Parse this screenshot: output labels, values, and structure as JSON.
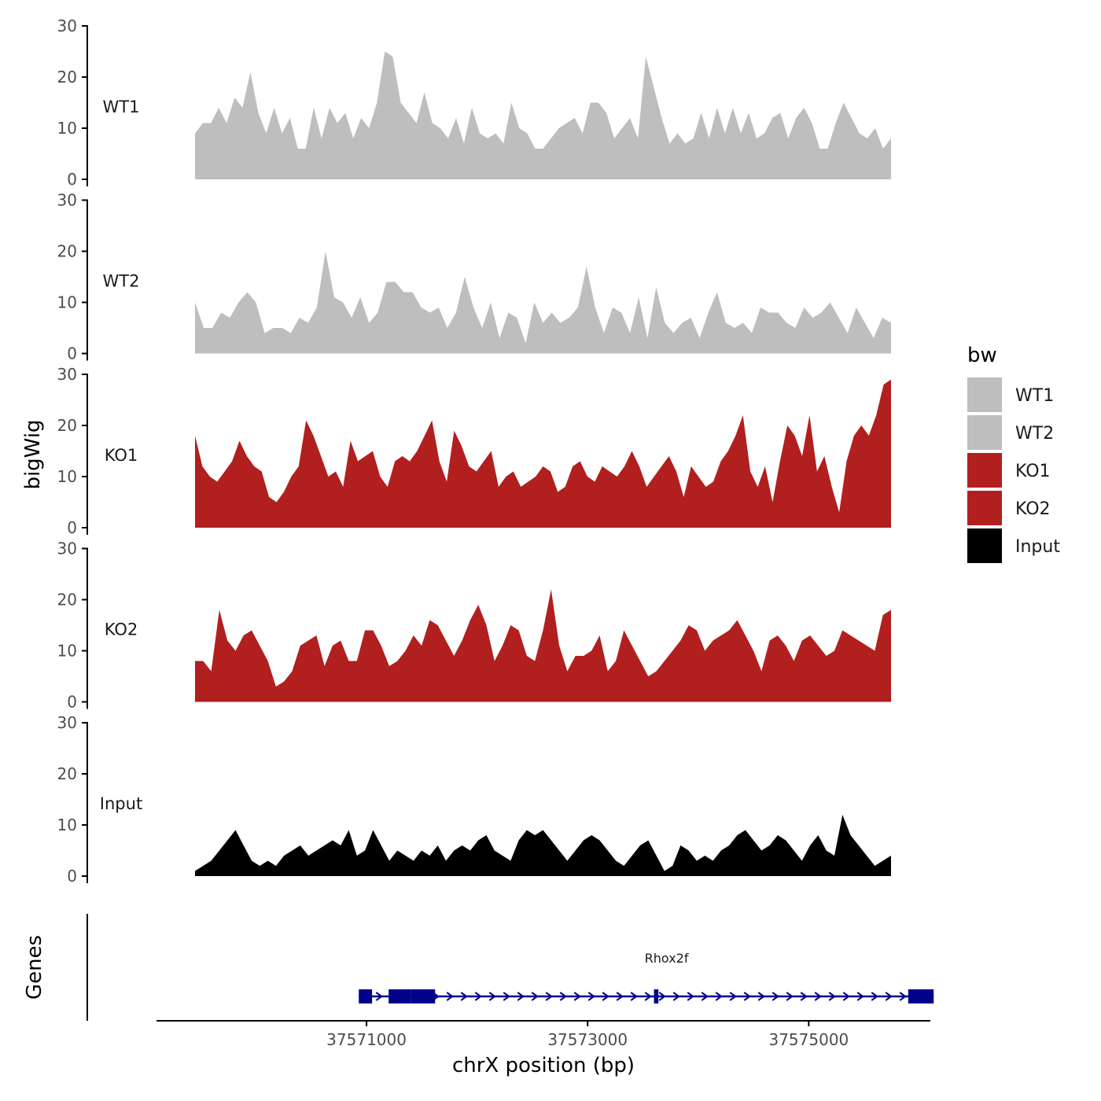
{
  "chart_data": {
    "type": "area",
    "x_range": [
      37569100,
      37576100
    ],
    "ylim": [
      0,
      30
    ],
    "y_ticks": [
      0,
      10,
      20,
      30
    ],
    "x_ticks": [
      37571000,
      37573000,
      37575000
    ],
    "x_tick_labels": [
      "37571000",
      "37573000",
      "37575000"
    ],
    "xlabel": "chrX position (bp)",
    "ylabel": "bigWig",
    "genes_label": "Genes",
    "legend": {
      "title": "bw",
      "entries": [
        {
          "name": "WT1",
          "color": "#bebebe"
        },
        {
          "name": "WT2",
          "color": "#bebebe"
        },
        {
          "name": "KO1",
          "color": "#b21f1f"
        },
        {
          "name": "KO2",
          "color": "#b21f1f"
        },
        {
          "name": "Input",
          "color": "#000000"
        }
      ]
    },
    "series": [
      {
        "name": "WT1",
        "color": "#bebebe",
        "values": [
          9,
          11,
          11,
          14,
          11,
          16,
          14,
          21,
          13,
          9,
          14,
          9,
          12,
          6,
          6,
          14,
          8,
          14,
          11,
          13,
          8,
          12,
          10,
          15,
          25,
          24,
          15,
          13,
          11,
          17,
          11,
          10,
          8,
          12,
          7,
          14,
          9,
          8,
          9,
          7,
          15,
          10,
          9,
          6,
          6,
          8,
          10,
          11,
          12,
          9,
          15,
          15,
          13,
          8,
          10,
          12,
          8,
          24,
          18,
          12,
          7,
          9,
          7,
          8,
          13,
          8,
          14,
          9,
          14,
          9,
          13,
          8,
          9,
          12,
          13,
          8,
          12,
          14,
          11,
          6,
          6,
          11,
          15,
          12,
          9,
          8,
          10,
          6,
          8
        ]
      },
      {
        "name": "WT2",
        "color": "#bebebe",
        "values": [
          10,
          5,
          5,
          8,
          7,
          10,
          12,
          10,
          4,
          5,
          5,
          4,
          7,
          6,
          9,
          20,
          11,
          10,
          7,
          11,
          6,
          8,
          14,
          14,
          12,
          12,
          9,
          8,
          9,
          5,
          8,
          15,
          9,
          5,
          10,
          3,
          8,
          7,
          2,
          10,
          6,
          8,
          6,
          7,
          9,
          17,
          9,
          4,
          9,
          8,
          4,
          11,
          3,
          13,
          6,
          4,
          6,
          7,
          3,
          8,
          12,
          6,
          5,
          6,
          4,
          9,
          8,
          8,
          6,
          5,
          9,
          7,
          8,
          10,
          7,
          4,
          9,
          6,
          3,
          7,
          6
        ]
      },
      {
        "name": "KO1",
        "color": "#b21f1f",
        "values": [
          18,
          12,
          10,
          9,
          11,
          13,
          17,
          14,
          12,
          11,
          6,
          5,
          7,
          10,
          12,
          21,
          18,
          14,
          10,
          11,
          8,
          17,
          13,
          14,
          15,
          10,
          8,
          13,
          14,
          13,
          15,
          18,
          21,
          13,
          9,
          19,
          16,
          12,
          11,
          13,
          15,
          8,
          10,
          11,
          8,
          9,
          10,
          12,
          11,
          7,
          8,
          12,
          13,
          10,
          9,
          12,
          11,
          10,
          12,
          15,
          12,
          8,
          10,
          12,
          14,
          11,
          6,
          12,
          10,
          8,
          9,
          13,
          15,
          18,
          22,
          11,
          8,
          12,
          5,
          13,
          20,
          18,
          14,
          22,
          11,
          14,
          8,
          3,
          13,
          18,
          20,
          18,
          22,
          28,
          29
        ]
      },
      {
        "name": "KO2",
        "color": "#b21f1f",
        "values": [
          8,
          8,
          6,
          18,
          12,
          10,
          13,
          14,
          11,
          8,
          3,
          4,
          6,
          11,
          12,
          13,
          7,
          11,
          12,
          8,
          8,
          14,
          14,
          11,
          7,
          8,
          10,
          13,
          11,
          16,
          15,
          12,
          9,
          12,
          16,
          19,
          15,
          8,
          11,
          15,
          14,
          9,
          8,
          14,
          22,
          11,
          6,
          9,
          9,
          10,
          13,
          6,
          8,
          14,
          11,
          8,
          5,
          6,
          8,
          10,
          12,
          15,
          14,
          10,
          12,
          13,
          14,
          16,
          13,
          10,
          6,
          12,
          13,
          11,
          8,
          12,
          13,
          11,
          9,
          10,
          14,
          13,
          12,
          11,
          10,
          17,
          18
        ]
      },
      {
        "name": "Input",
        "color": "#000000",
        "values": [
          1,
          2,
          3,
          5,
          7,
          9,
          6,
          3,
          2,
          3,
          2,
          4,
          5,
          6,
          4,
          5,
          6,
          7,
          6,
          9,
          4,
          5,
          9,
          6,
          3,
          5,
          4,
          3,
          5,
          4,
          6,
          3,
          5,
          6,
          5,
          7,
          8,
          5,
          4,
          3,
          7,
          9,
          8,
          9,
          7,
          5,
          3,
          5,
          7,
          8,
          7,
          5,
          3,
          2,
          4,
          6,
          7,
          4,
          1,
          2,
          6,
          5,
          3,
          4,
          3,
          5,
          6,
          8,
          9,
          7,
          5,
          6,
          8,
          7,
          5,
          3,
          6,
          8,
          5,
          4,
          12,
          8,
          6,
          4,
          2,
          3,
          4
        ]
      }
    ],
    "genes": [
      {
        "name": "Rhox2f",
        "color": "#00008b",
        "strand": "+",
        "start": 37570930,
        "end": 37576130,
        "exons": [
          [
            37570930,
            37571050
          ],
          [
            37571200,
            37571400
          ],
          [
            37571400,
            37571620
          ],
          [
            37573600,
            37573640
          ],
          [
            37575900,
            37576130
          ]
        ]
      }
    ]
  }
}
